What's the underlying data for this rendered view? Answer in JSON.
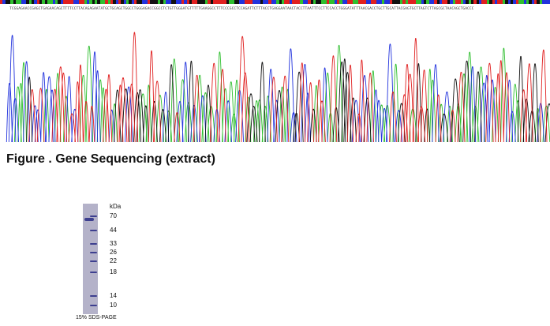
{
  "sequence": {
    "text": "TCGGAGAACCGAGCTGAGAACAGCTTTTCCTTACAGAGAATATGCTGCAGCTGGCCTGGGAGACCGGCCTCTGTTGGGATGTTTTTGAAGGCCTTTCCCGCCTCCAGATTCTTTACCTGAGGAATAACTACCTTAATTTCCTTCCACCTGGGATATTTAACGACCTGCTTGCATTACGAGTGCTTAGTCTTAGCGCTAACAGCTGACCC",
    "base_colors": {
      "A": "#2fbf2f",
      "C": "#2233dd",
      "G": "#111111",
      "T": "#e02020"
    }
  },
  "caption": {
    "figure": "Figure . Gene Sequencing (extract)"
  },
  "gel": {
    "unit_label": "kDa",
    "markers": [
      "70",
      "44",
      "33",
      "26",
      "22",
      "18",
      "14",
      "10"
    ],
    "caption": "15% SDS-PAGE",
    "lane_color": "#b4b2c9",
    "band_color": "#3d3f8f"
  }
}
